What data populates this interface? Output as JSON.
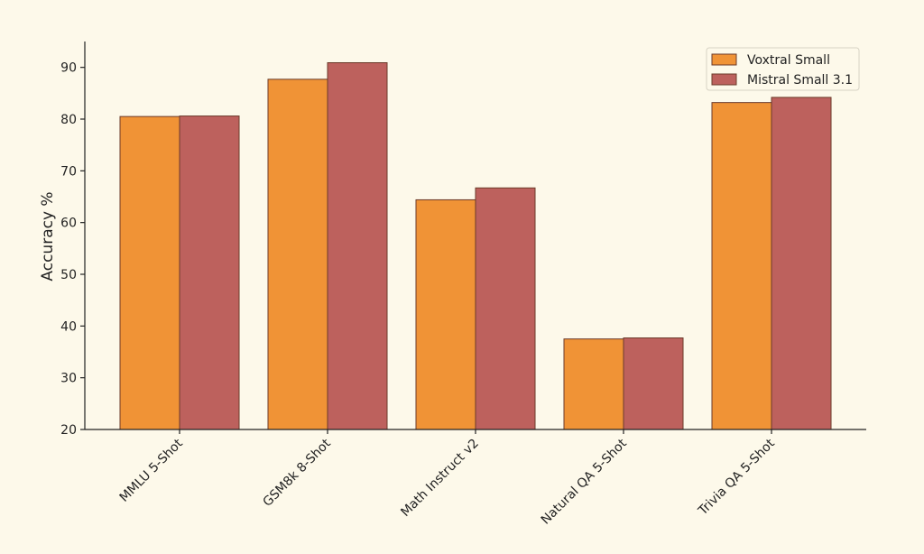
{
  "colors": {
    "background": "#fdf9ea",
    "legend_background": "#fdf9ea",
    "axis": "#222222",
    "bar_edge": "#6b3a2a"
  },
  "chart_data": {
    "type": "bar",
    "title": "",
    "xlabel": "",
    "ylabel": "Accuracy %",
    "ylim": [
      20,
      95
    ],
    "yticks": [
      20,
      30,
      40,
      50,
      60,
      70,
      80,
      90
    ],
    "grid": false,
    "legend_position": "top-right",
    "categories": [
      "MMLU 5-Shot",
      "GSM8k 8-Shot",
      "Math Instruct v2",
      "Natural QA 5-Shot",
      "Trivia QA 5-Shot"
    ],
    "series": [
      {
        "name": "Voxtral Small",
        "color": "#f09336",
        "values": [
          80.5,
          87.7,
          64.4,
          37.5,
          83.2
        ]
      },
      {
        "name": "Mistral Small 3.1",
        "color": "#bd615d",
        "values": [
          80.6,
          90.9,
          66.7,
          37.7,
          84.2
        ]
      }
    ]
  }
}
